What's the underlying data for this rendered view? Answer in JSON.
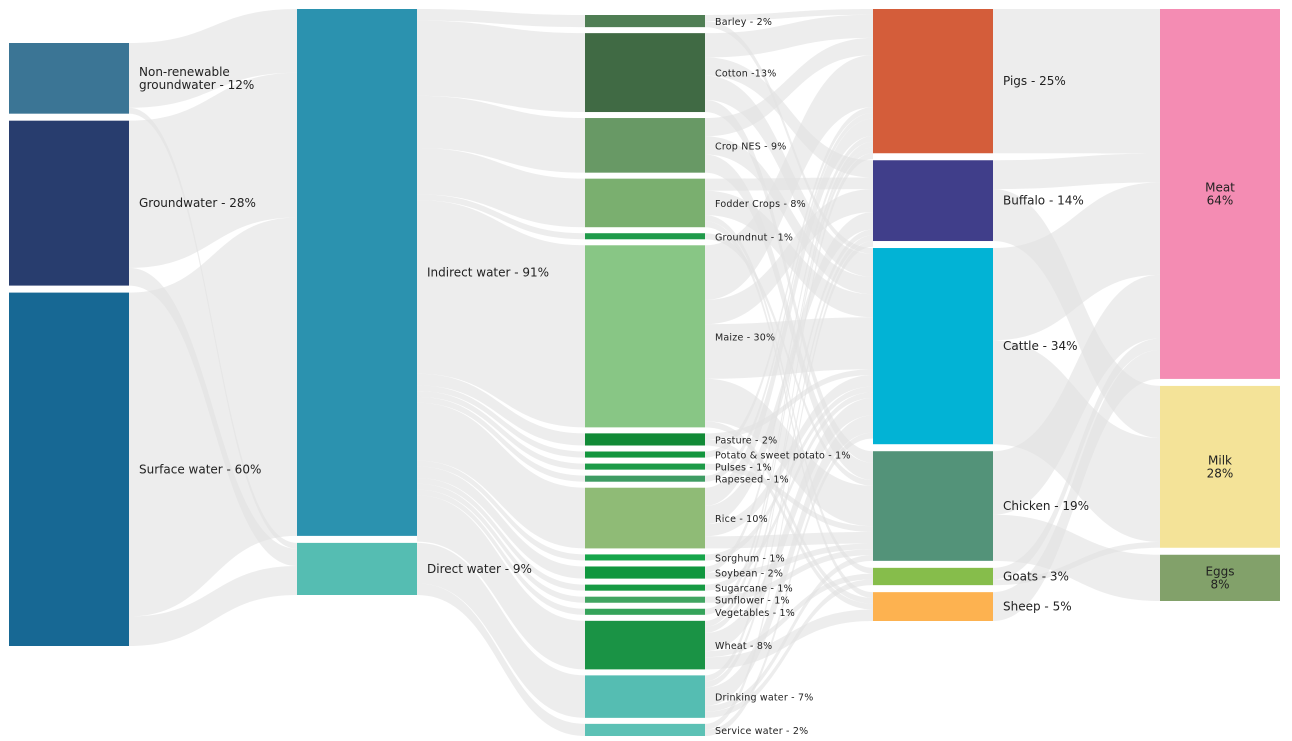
{
  "chart_data": {
    "type": "sankey",
    "columns": [
      {
        "name": "source",
        "nodes": [
          {
            "id": "nonrenew",
            "label": "Non-renewable\ngroundwater - 12%",
            "value": 12,
            "color": "#3B7595"
          },
          {
            "id": "ground",
            "label": "Groundwater - 28%",
            "value": 28,
            "color": "#283D6E"
          },
          {
            "id": "surface",
            "label": "Surface water - 60%",
            "value": 60,
            "color": "#176894"
          }
        ]
      },
      {
        "name": "type",
        "nodes": [
          {
            "id": "indirect",
            "label": "Indirect water - 91%",
            "value": 91,
            "color": "#2B92AF"
          },
          {
            "id": "direct",
            "label": "Direct water - 9%",
            "value": 9,
            "color": "#55BDB2"
          }
        ]
      },
      {
        "name": "crop",
        "nodes": [
          {
            "id": "barley",
            "label": "Barley - 2%",
            "value": 2,
            "color": "#4F7E54"
          },
          {
            "id": "cotton",
            "label": "Cotton -13%",
            "value": 13,
            "color": "#406A44"
          },
          {
            "id": "cropnes",
            "label": "Crop NES - 9%",
            "value": 9,
            "color": "#689965"
          },
          {
            "id": "fodder",
            "label": "Fodder Crops - 8%",
            "value": 8,
            "color": "#7AAF6F"
          },
          {
            "id": "groundnut",
            "label": "Groundnut - 1%",
            "value": 1,
            "color": "#1F9A4A"
          },
          {
            "id": "maize",
            "label": "Maize - 30%",
            "value": 30,
            "color": "#88C685"
          },
          {
            "id": "pasture",
            "label": "Pasture - 2%",
            "value": 2,
            "color": "#118A36"
          },
          {
            "id": "potato",
            "label": "Potato & sweet potato - 1%",
            "value": 1,
            "color": "#13963E"
          },
          {
            "id": "pulses",
            "label": "Pulses - 1%",
            "value": 1,
            "color": "#1C9A47"
          },
          {
            "id": "rapeseed",
            "label": "Rapeseed - 1%",
            "value": 1,
            "color": "#3E9C63"
          },
          {
            "id": "rice",
            "label": "Rice - 10%",
            "value": 10,
            "color": "#8FBB76"
          },
          {
            "id": "sorghum",
            "label": "Sorghum - 1%",
            "value": 1,
            "color": "#16A54A"
          },
          {
            "id": "soybean",
            "label": "Soybean - 2%",
            "value": 2,
            "color": "#0F973E"
          },
          {
            "id": "sugarcane",
            "label": "Sugarcane - 1%",
            "value": 1,
            "color": "#169A43"
          },
          {
            "id": "sunflower",
            "label": "Sunflower - 1%",
            "value": 1,
            "color": "#41A562"
          },
          {
            "id": "vegetables",
            "label": "Vegetables - 1%",
            "value": 1,
            "color": "#35A35A"
          },
          {
            "id": "wheat",
            "label": "Wheat - 8%",
            "value": 8,
            "color": "#1A9345"
          },
          {
            "id": "drinking",
            "label": "Drinking water - 7%",
            "value": 7,
            "color": "#55BDB2"
          },
          {
            "id": "service",
            "label": "Service water - 2%",
            "value": 2,
            "color": "#5CC1B5"
          }
        ]
      },
      {
        "name": "animal",
        "nodes": [
          {
            "id": "pigs",
            "label": "Pigs - 25%",
            "value": 25,
            "color": "#D45D3A"
          },
          {
            "id": "buffalo",
            "label": "Buffalo - 14%",
            "value": 14,
            "color": "#403E8A"
          },
          {
            "id": "cattle",
            "label": "Cattle - 34%",
            "value": 34,
            "color": "#02B3D5"
          },
          {
            "id": "chicken",
            "label": "Chicken - 19%",
            "value": 19,
            "color": "#539379"
          },
          {
            "id": "goats",
            "label": "Goats - 3%",
            "value": 3,
            "color": "#86BD4B"
          },
          {
            "id": "sheep",
            "label": "Sheep - 5%",
            "value": 5,
            "color": "#FDB250"
          }
        ]
      },
      {
        "name": "product",
        "nodes": [
          {
            "id": "meat",
            "label": "Meat\n64%",
            "value": 64,
            "color": "#F48CB3"
          },
          {
            "id": "milk",
            "label": "Milk\n28%",
            "value": 28,
            "color": "#F4E398"
          },
          {
            "id": "eggs",
            "label": "Eggs\n8%",
            "value": 8,
            "color": "#82A16A"
          }
        ]
      }
    ],
    "link_color": "#E2E2E2",
    "links": [
      {
        "source": "nonrenew",
        "target": "indirect",
        "value": 11
      },
      {
        "source": "nonrenew",
        "target": "direct",
        "value": 1
      },
      {
        "source": "ground",
        "target": "indirect",
        "value": 25
      },
      {
        "source": "ground",
        "target": "direct",
        "value": 3
      },
      {
        "source": "surface",
        "target": "indirect",
        "value": 55
      },
      {
        "source": "surface",
        "target": "direct",
        "value": 5
      },
      {
        "source": "indirect",
        "target": "barley",
        "value": 2
      },
      {
        "source": "indirect",
        "target": "cotton",
        "value": 13
      },
      {
        "source": "indirect",
        "target": "cropnes",
        "value": 9
      },
      {
        "source": "indirect",
        "target": "fodder",
        "value": 8
      },
      {
        "source": "indirect",
        "target": "groundnut",
        "value": 1
      },
      {
        "source": "indirect",
        "target": "maize",
        "value": 30
      },
      {
        "source": "indirect",
        "target": "pasture",
        "value": 2
      },
      {
        "source": "indirect",
        "target": "potato",
        "value": 1
      },
      {
        "source": "indirect",
        "target": "pulses",
        "value": 1
      },
      {
        "source": "indirect",
        "target": "rapeseed",
        "value": 1
      },
      {
        "source": "indirect",
        "target": "rice",
        "value": 10
      },
      {
        "source": "indirect",
        "target": "sorghum",
        "value": 1
      },
      {
        "source": "indirect",
        "target": "soybean",
        "value": 2
      },
      {
        "source": "indirect",
        "target": "sugarcane",
        "value": 1
      },
      {
        "source": "indirect",
        "target": "sunflower",
        "value": 1
      },
      {
        "source": "indirect",
        "target": "vegetables",
        "value": 1
      },
      {
        "source": "indirect",
        "target": "wheat",
        "value": 8
      },
      {
        "source": "direct",
        "target": "drinking",
        "value": 7
      },
      {
        "source": "direct",
        "target": "service",
        "value": 2
      },
      {
        "source": "barley",
        "target": "pigs",
        "value": 1
      },
      {
        "source": "barley",
        "target": "cattle",
        "value": 1
      },
      {
        "source": "cotton",
        "target": "pigs",
        "value": 4
      },
      {
        "source": "cotton",
        "target": "buffalo",
        "value": 3
      },
      {
        "source": "cotton",
        "target": "cattle",
        "value": 4
      },
      {
        "source": "cotton",
        "target": "chicken",
        "value": 2
      },
      {
        "source": "cropnes",
        "target": "pigs",
        "value": 3
      },
      {
        "source": "cropnes",
        "target": "cattle",
        "value": 3
      },
      {
        "source": "cropnes",
        "target": "chicken",
        "value": 3
      },
      {
        "source": "fodder",
        "target": "buffalo",
        "value": 2
      },
      {
        "source": "fodder",
        "target": "cattle",
        "value": 4
      },
      {
        "source": "fodder",
        "target": "goats",
        "value": 1
      },
      {
        "source": "fodder",
        "target": "sheep",
        "value": 1
      },
      {
        "source": "groundnut",
        "target": "chicken",
        "value": 1
      },
      {
        "source": "maize",
        "target": "pigs",
        "value": 9
      },
      {
        "source": "maize",
        "target": "buffalo",
        "value": 4
      },
      {
        "source": "maize",
        "target": "cattle",
        "value": 9
      },
      {
        "source": "maize",
        "target": "chicken",
        "value": 7
      },
      {
        "source": "maize",
        "target": "sheep",
        "value": 1
      },
      {
        "source": "pasture",
        "target": "cattle",
        "value": 1
      },
      {
        "source": "pasture",
        "target": "sheep",
        "value": 1
      },
      {
        "source": "potato",
        "target": "pigs",
        "value": 1
      },
      {
        "source": "pulses",
        "target": "chicken",
        "value": 1
      },
      {
        "source": "rapeseed",
        "target": "pigs",
        "value": 1
      },
      {
        "source": "rice",
        "target": "pigs",
        "value": 3
      },
      {
        "source": "rice",
        "target": "buffalo",
        "value": 3
      },
      {
        "source": "rice",
        "target": "cattle",
        "value": 2
      },
      {
        "source": "rice",
        "target": "chicken",
        "value": 2
      },
      {
        "source": "sorghum",
        "target": "cattle",
        "value": 1
      },
      {
        "source": "soybean",
        "target": "pigs",
        "value": 1
      },
      {
        "source": "soybean",
        "target": "chicken",
        "value": 1
      },
      {
        "source": "sugarcane",
        "target": "cattle",
        "value": 1
      },
      {
        "source": "sunflower",
        "target": "chicken",
        "value": 1
      },
      {
        "source": "vegetables",
        "target": "pigs",
        "value": 1
      },
      {
        "source": "wheat",
        "target": "pigs",
        "value": 1
      },
      {
        "source": "wheat",
        "target": "buffalo",
        "value": 1
      },
      {
        "source": "wheat",
        "target": "cattle",
        "value": 3
      },
      {
        "source": "wheat",
        "target": "goats",
        "value": 1
      },
      {
        "source": "wheat",
        "target": "sheep",
        "value": 2
      },
      {
        "source": "drinking",
        "target": "cattle",
        "value": 3
      },
      {
        "source": "drinking",
        "target": "buffalo",
        "value": 1
      },
      {
        "source": "drinking",
        "target": "chicken",
        "value": 1
      },
      {
        "source": "drinking",
        "target": "goats",
        "value": 1
      },
      {
        "source": "drinking",
        "target": "pigs",
        "value": 1
      },
      {
        "source": "service",
        "target": "cattle",
        "value": 1
      },
      {
        "source": "service",
        "target": "buffalo",
        "value": 1
      },
      {
        "source": "pigs",
        "target": "meat",
        "value": 25
      },
      {
        "source": "buffalo",
        "target": "meat",
        "value": 5
      },
      {
        "source": "buffalo",
        "target": "milk",
        "value": 9
      },
      {
        "source": "cattle",
        "target": "meat",
        "value": 16
      },
      {
        "source": "cattle",
        "target": "milk",
        "value": 18
      },
      {
        "source": "chicken",
        "target": "meat",
        "value": 11
      },
      {
        "source": "chicken",
        "target": "eggs",
        "value": 8
      },
      {
        "source": "goats",
        "target": "meat",
        "value": 2
      },
      {
        "source": "goats",
        "target": "milk",
        "value": 1
      },
      {
        "source": "sheep",
        "target": "meat",
        "value": 5
      }
    ]
  }
}
